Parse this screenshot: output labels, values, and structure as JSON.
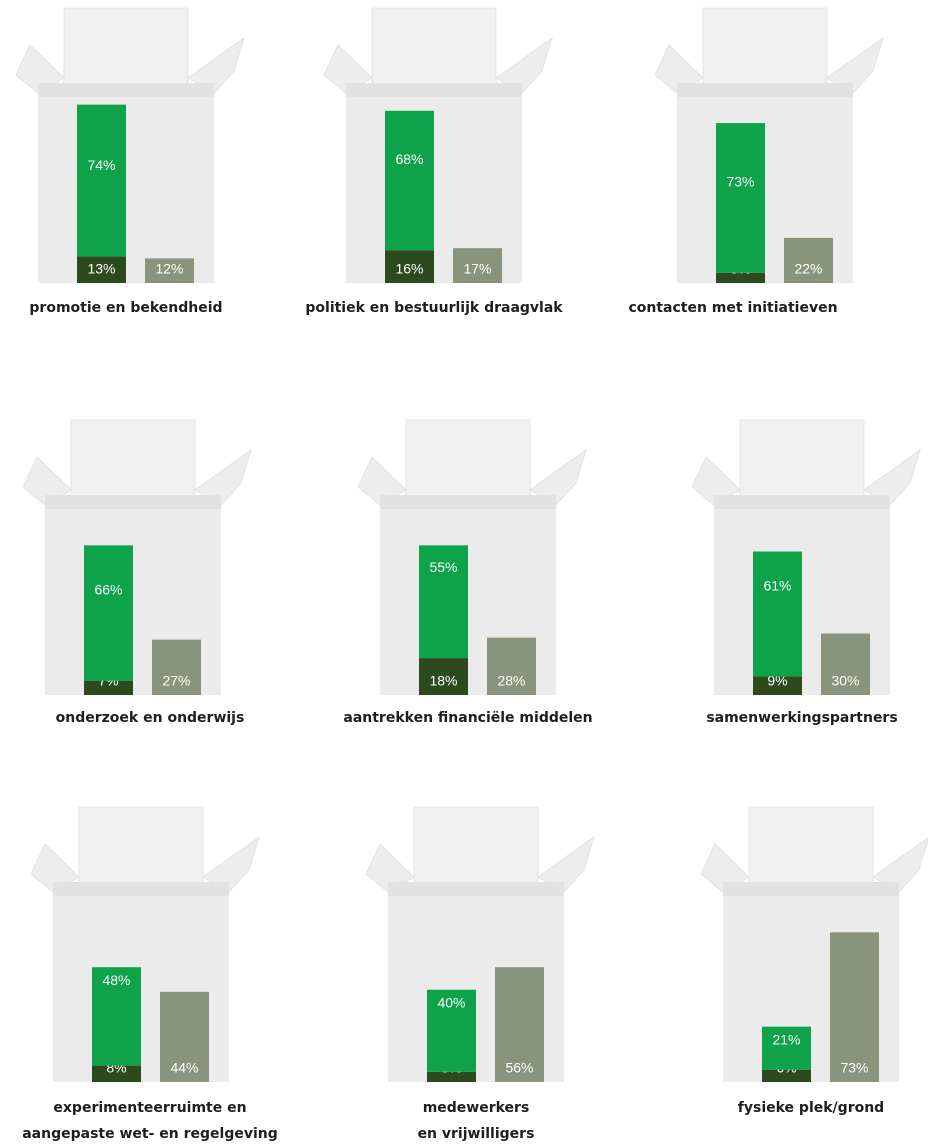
{
  "chart_data": [
    {
      "type": "bar",
      "title": [
        "promotie en bekendheid"
      ],
      "categories": [
        null,
        null
      ],
      "ylim": [
        0,
        100
      ],
      "series": [
        {
          "color": "#2d4a1f",
          "values": [
            13,
            null
          ],
          "value_labels": [
            "13%",
            null
          ]
        },
        {
          "color": "#0ea24a",
          "values": [
            74,
            null
          ],
          "value_labels": [
            "74%",
            null
          ]
        },
        {
          "color": "#8a947c",
          "values": [
            null,
            12
          ],
          "value_labels": [
            null,
            "12%"
          ]
        }
      ]
    },
    {
      "type": "bar",
      "title": [
        "politiek en bestuurlijk draagvlak"
      ],
      "categories": [
        null,
        null
      ],
      "ylim": [
        0,
        100
      ],
      "series": [
        {
          "color": "#2d4a1f",
          "values": [
            16,
            null
          ],
          "value_labels": [
            "16%",
            null
          ]
        },
        {
          "color": "#0ea24a",
          "values": [
            68,
            null
          ],
          "value_labels": [
            "68%",
            null
          ]
        },
        {
          "color": "#8a947c",
          "values": [
            null,
            17
          ],
          "value_labels": [
            null,
            "17%"
          ]
        }
      ]
    },
    {
      "type": "bar",
      "title": [
        "contacten met initiatieven"
      ],
      "categories": [
        null,
        null
      ],
      "ylim": [
        0,
        100
      ],
      "series": [
        {
          "color": "#2d4a1f",
          "values": [
            5,
            null
          ],
          "value_labels": [
            "5%",
            null
          ]
        },
        {
          "color": "#0ea24a",
          "values": [
            73,
            null
          ],
          "value_labels": [
            "73%",
            null
          ]
        },
        {
          "color": "#8a947c",
          "values": [
            null,
            22
          ],
          "value_labels": [
            null,
            "22%"
          ]
        }
      ]
    },
    {
      "type": "bar",
      "title": [
        "onderzoek en onderwijs"
      ],
      "categories": [
        null,
        null
      ],
      "ylim": [
        0,
        100
      ],
      "series": [
        {
          "color": "#2d4a1f",
          "values": [
            7,
            null
          ],
          "value_labels": [
            "7%",
            null
          ]
        },
        {
          "color": "#0ea24a",
          "values": [
            66,
            null
          ],
          "value_labels": [
            "66%",
            null
          ]
        },
        {
          "color": "#8a947c",
          "values": [
            null,
            27
          ],
          "value_labels": [
            null,
            "27%"
          ]
        }
      ]
    },
    {
      "type": "bar",
      "title": [
        "aantrekken financiële middelen"
      ],
      "categories": [
        null,
        null
      ],
      "ylim": [
        0,
        100
      ],
      "series": [
        {
          "color": "#2d4a1f",
          "values": [
            18,
            null
          ],
          "value_labels": [
            "18%",
            null
          ]
        },
        {
          "color": "#0ea24a",
          "values": [
            55,
            null
          ],
          "value_labels": [
            "55%",
            null
          ]
        },
        {
          "color": "#8a947c",
          "values": [
            null,
            28
          ],
          "value_labels": [
            null,
            "28%"
          ]
        }
      ]
    },
    {
      "type": "bar",
      "title": [
        "samenwerkingspartners"
      ],
      "categories": [
        null,
        null
      ],
      "ylim": [
        0,
        100
      ],
      "series": [
        {
          "color": "#2d4a1f",
          "values": [
            9,
            null
          ],
          "value_labels": [
            "9%",
            null
          ]
        },
        {
          "color": "#0ea24a",
          "values": [
            61,
            null
          ],
          "value_labels": [
            "61%",
            null
          ]
        },
        {
          "color": "#8a947c",
          "values": [
            null,
            30
          ],
          "value_labels": [
            null,
            "30%"
          ]
        }
      ]
    },
    {
      "type": "bar",
      "title": [
        "experimenteerruimte en",
        "aangepaste wet- en regelgeving"
      ],
      "categories": [
        null,
        null
      ],
      "ylim": [
        0,
        100
      ],
      "series": [
        {
          "color": "#2d4a1f",
          "values": [
            8,
            null
          ],
          "value_labels": [
            "8%",
            null
          ]
        },
        {
          "color": "#0ea24a",
          "values": [
            48,
            null
          ],
          "value_labels": [
            "48%",
            null
          ]
        },
        {
          "color": "#8a947c",
          "values": [
            null,
            44
          ],
          "value_labels": [
            null,
            "44%"
          ]
        }
      ]
    },
    {
      "type": "bar",
      "title": [
        "medewerkers",
        "en vrijwilligers"
      ],
      "categories": [
        null,
        null
      ],
      "ylim": [
        0,
        100
      ],
      "series": [
        {
          "color": "#2d4a1f",
          "values": [
            5,
            null
          ],
          "value_labels": [
            "5%",
            null
          ]
        },
        {
          "color": "#0ea24a",
          "values": [
            40,
            null
          ],
          "value_labels": [
            "40%",
            null
          ]
        },
        {
          "color": "#8a947c",
          "values": [
            null,
            56
          ],
          "value_labels": [
            null,
            "56%"
          ]
        }
      ]
    },
    {
      "type": "bar",
      "title": [
        "fysieke plek/grond"
      ],
      "categories": [
        null,
        null
      ],
      "ylim": [
        0,
        100
      ],
      "series": [
        {
          "color": "#2d4a1f",
          "values": [
            6,
            null
          ],
          "value_labels": [
            "6%",
            null
          ]
        },
        {
          "color": "#0ea24a",
          "values": [
            21,
            null
          ],
          "value_labels": [
            "21%",
            null
          ]
        },
        {
          "color": "#8a947c",
          "values": [
            null,
            73
          ],
          "value_labels": [
            null,
            "73%"
          ]
        }
      ]
    }
  ]
}
